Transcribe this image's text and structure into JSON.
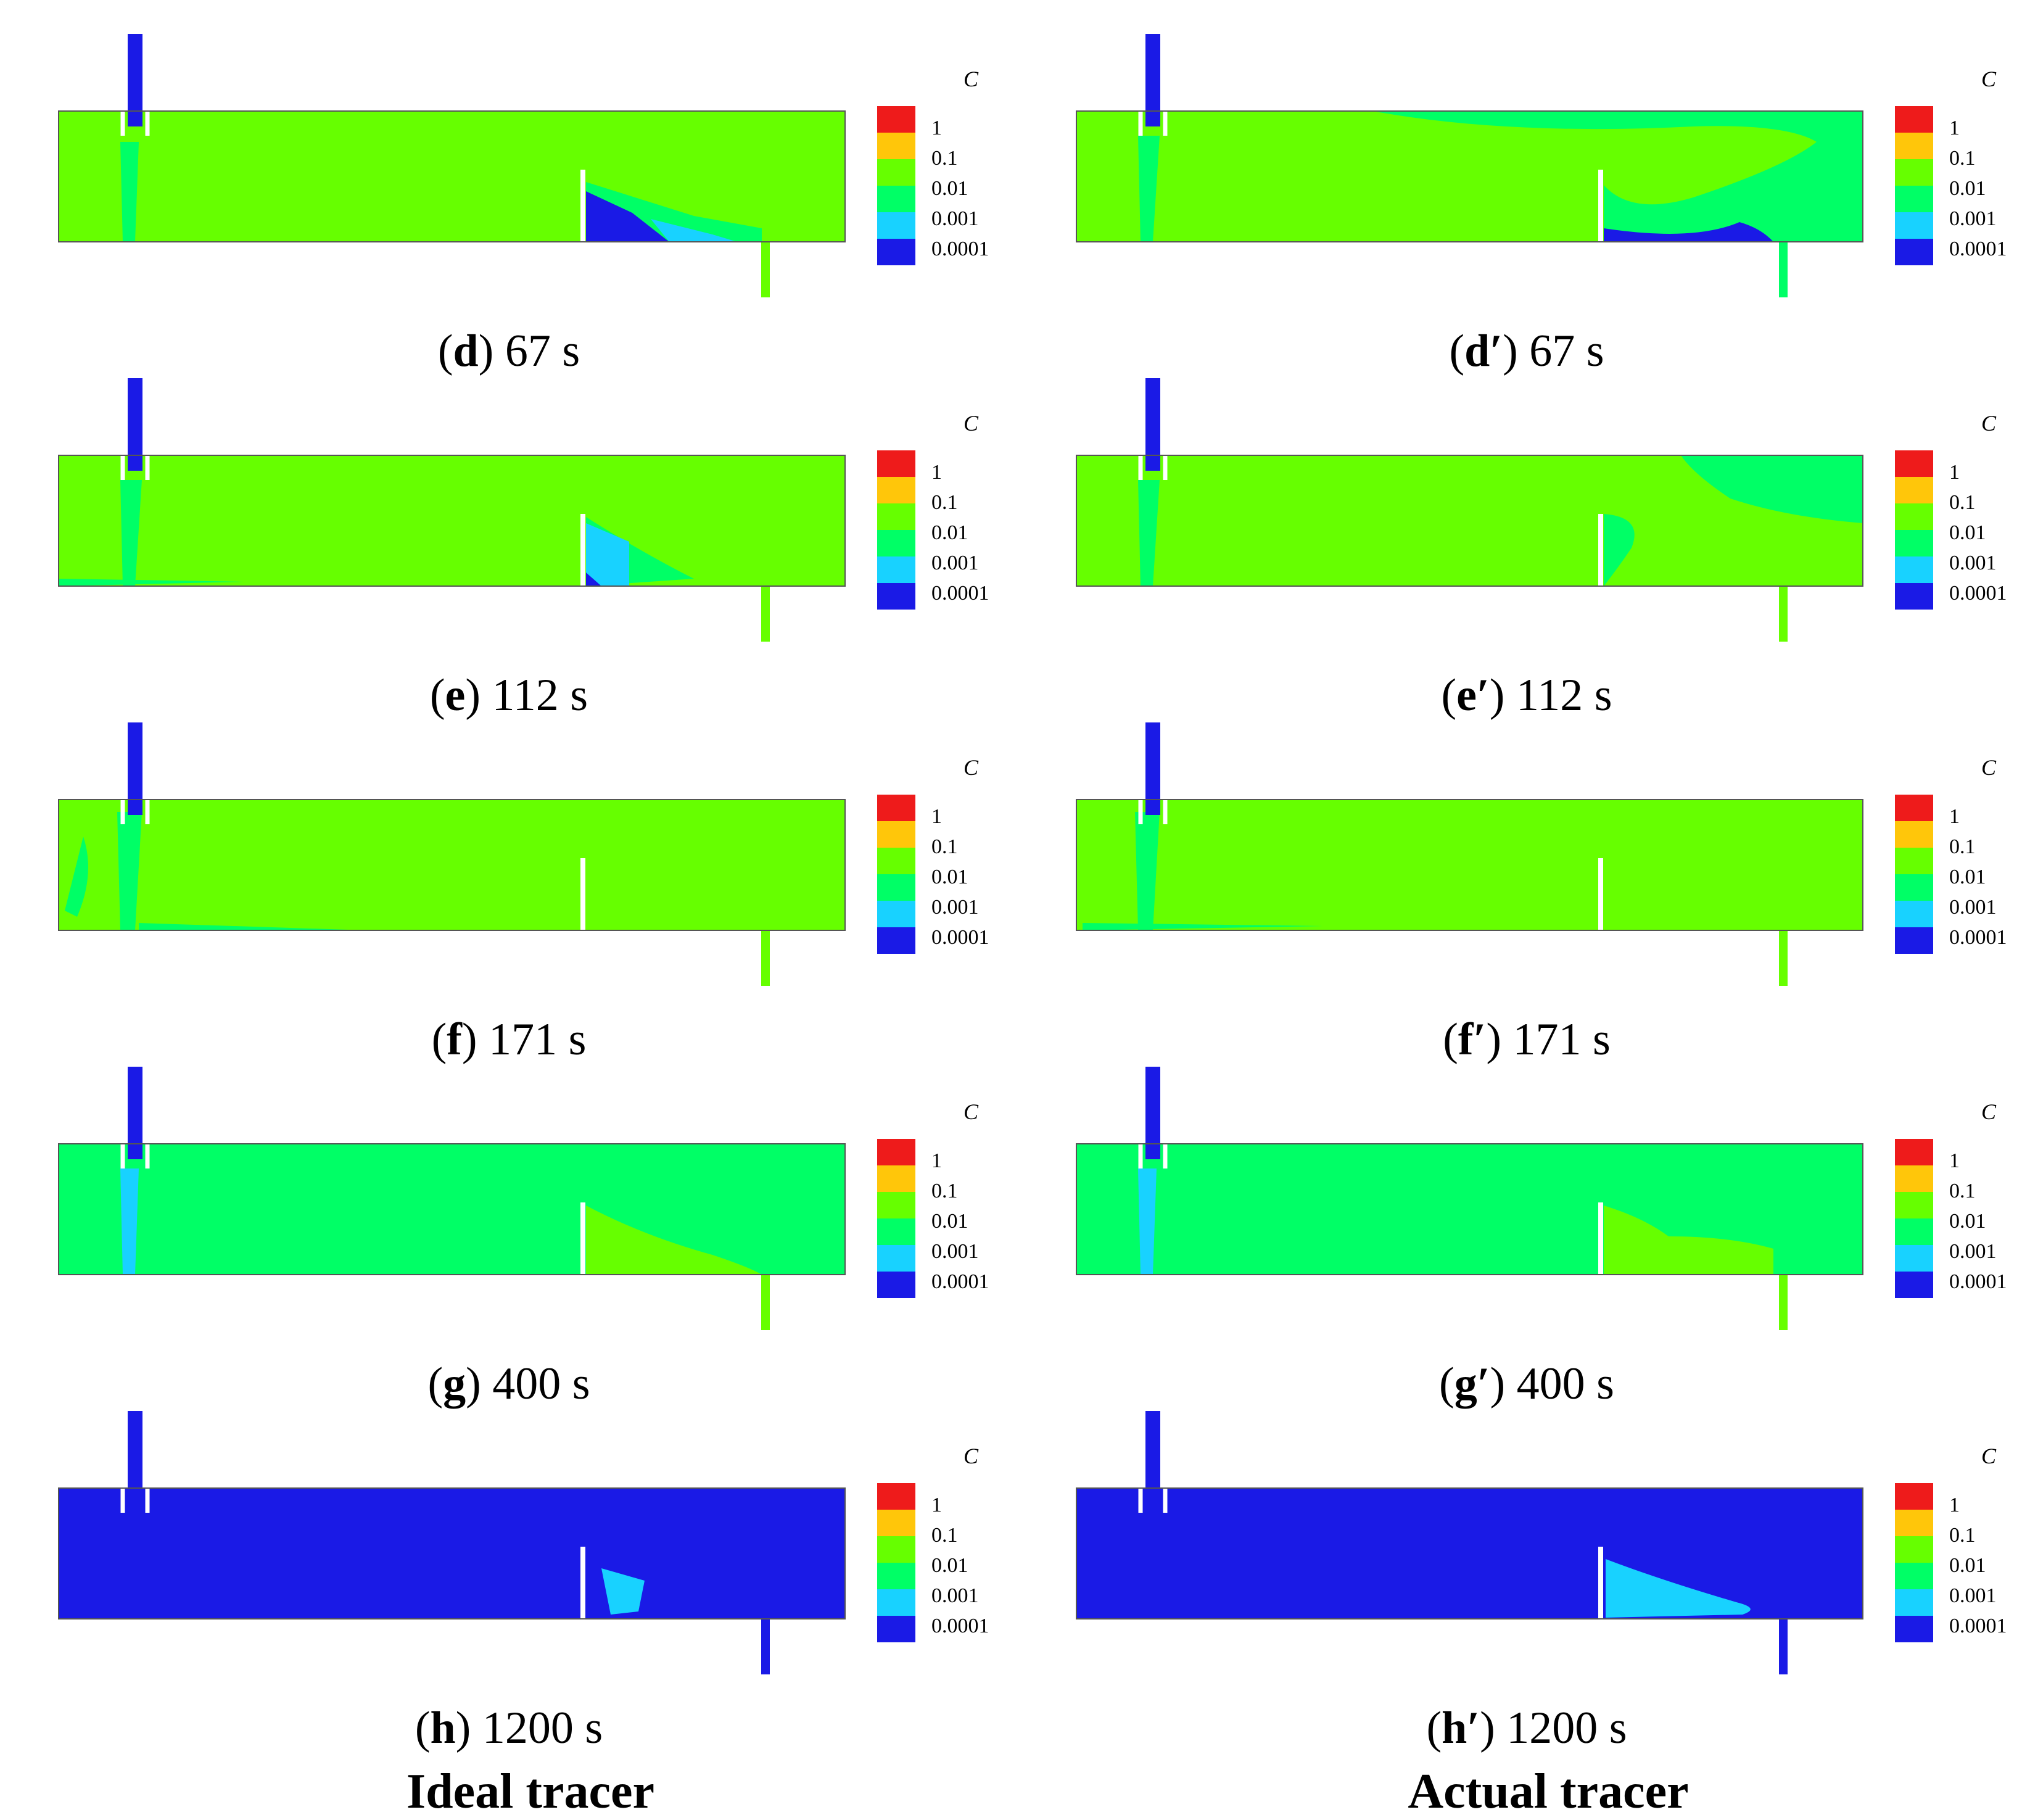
{
  "figure": {
    "legend_title": "C",
    "legend_levels": [
      {
        "label": "1",
        "color": "#ee1b1b"
      },
      {
        "label": "0.1",
        "color": "#ffc60a"
      },
      {
        "label": "0.01",
        "color": "#66ff00"
      },
      {
        "label": "0.001",
        "color": "#00ff66"
      },
      {
        "label": "0.0001",
        "color": "#1a1ae6"
      }
    ],
    "legend_extra_color": "#18d2ff",
    "column_titles": [
      "Ideal tracer",
      "Actual tracer"
    ],
    "panels": [
      {
        "letter": "d",
        "time": "67 s"
      },
      {
        "letter": "d′",
        "time": "67 s"
      },
      {
        "letter": "e",
        "time": "112 s"
      },
      {
        "letter": "e′",
        "time": "112 s"
      },
      {
        "letter": "f",
        "time": "171 s"
      },
      {
        "letter": "f′",
        "time": "171 s"
      },
      {
        "letter": "g",
        "time": "400 s"
      },
      {
        "letter": "g′",
        "time": "400 s"
      },
      {
        "letter": "h",
        "time": "1200 s"
      },
      {
        "letter": "h′",
        "time": "1200 s"
      }
    ]
  }
}
